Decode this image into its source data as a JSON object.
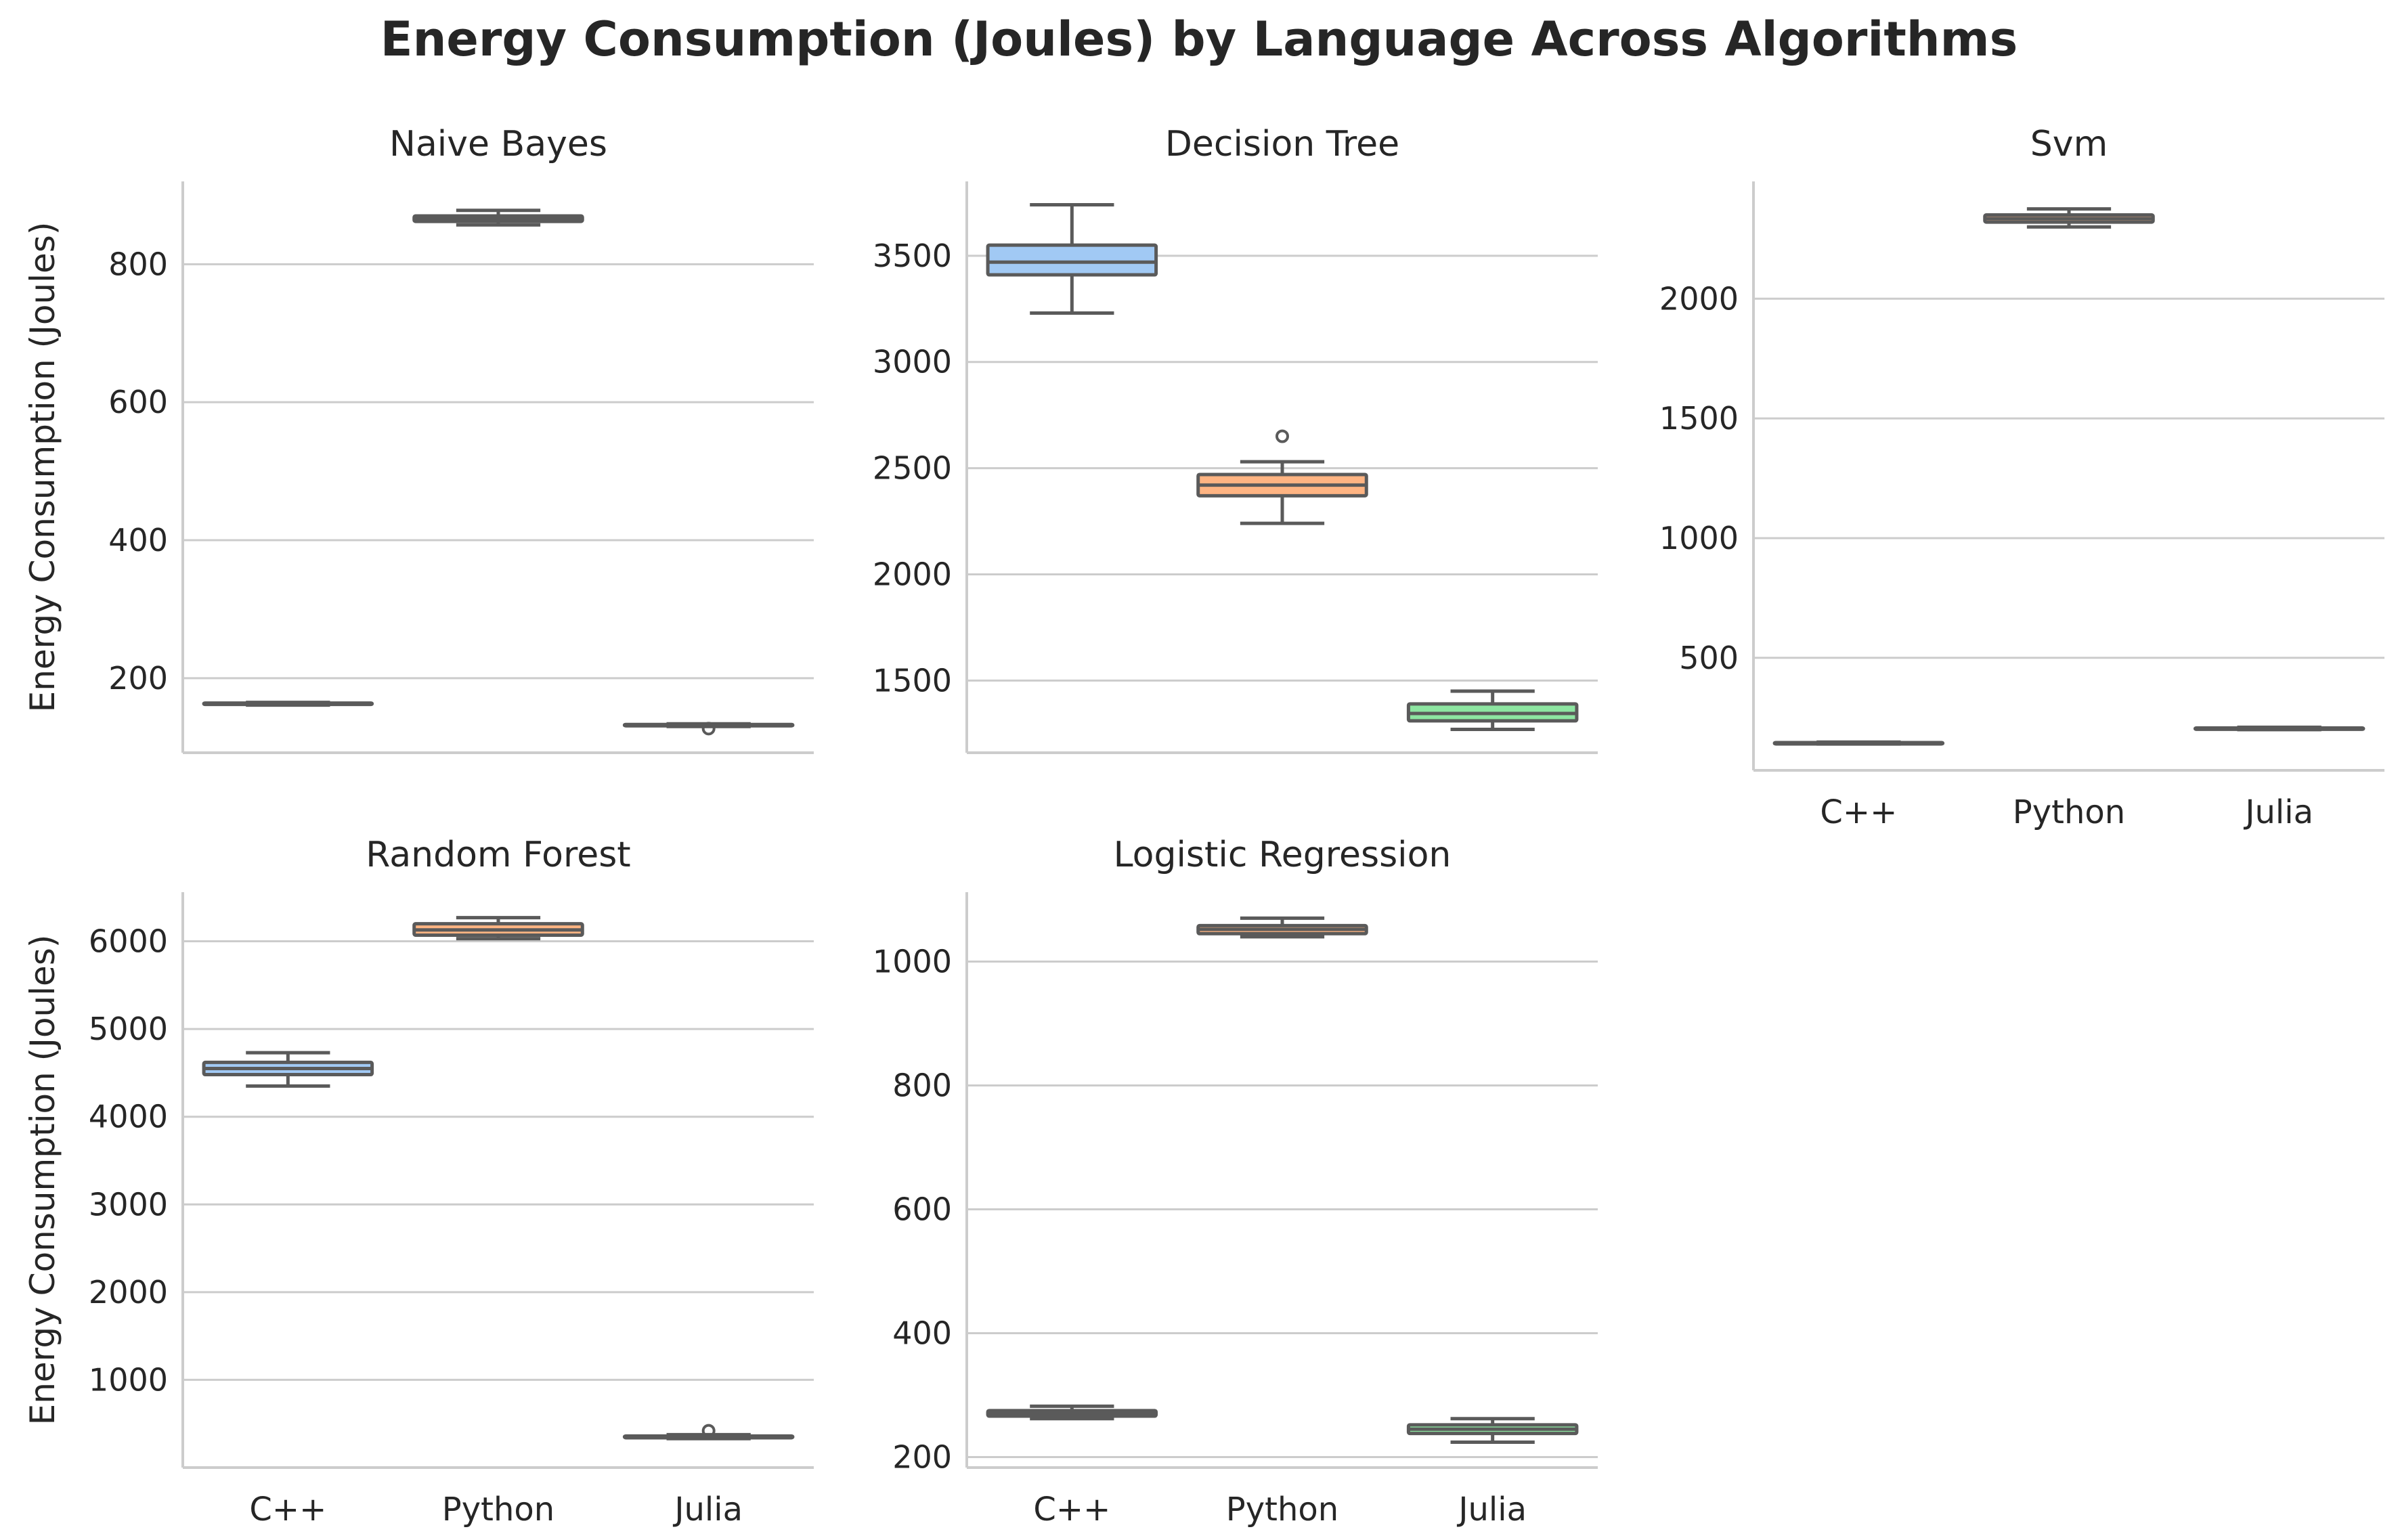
{
  "figure": {
    "title": "Energy Consumption (Joules) by Language Across Algorithms"
  },
  "colors": {
    "C++": "#a1c9f4",
    "Python": "#ffb482",
    "Julia": "#8de5a1",
    "line": "#5a5a5a",
    "grid": "#cccccc",
    "spine": "#cccccc",
    "text": "#262626"
  },
  "chart_data": [
    {
      "type": "box",
      "title": "Naive Bayes",
      "ylabel": "Energy Consumption (Joules)",
      "xlabel": "",
      "categories": [
        "C++",
        "Python",
        "Julia"
      ],
      "show_xticklabels": false,
      "ylim": [
        92,
        920
      ],
      "yticks": [
        200,
        400,
        600,
        800
      ],
      "grid": "horizontal",
      "boxes": [
        {
          "category": "C++",
          "min": 161,
          "q1": 162,
          "median": 163,
          "q3": 164,
          "max": 165,
          "outliers": []
        },
        {
          "category": "Python",
          "min": 857,
          "q1": 862,
          "median": 866,
          "q3": 870,
          "max": 878,
          "outliers": []
        },
        {
          "category": "Julia",
          "min": 130,
          "q1": 131,
          "median": 132,
          "q3": 133,
          "max": 134,
          "outliers": [
            127
          ]
        }
      ]
    },
    {
      "type": "box",
      "title": "Decision Tree",
      "ylabel": "",
      "xlabel": "",
      "categories": [
        "C++",
        "Python",
        "Julia"
      ],
      "show_xticklabels": false,
      "ylim": [
        1160,
        3850
      ],
      "yticks": [
        1500,
        2000,
        2500,
        3000,
        3500
      ],
      "grid": "horizontal",
      "boxes": [
        {
          "category": "C++",
          "min": 3230,
          "q1": 3410,
          "median": 3470,
          "q3": 3550,
          "max": 3740,
          "outliers": []
        },
        {
          "category": "Python",
          "min": 2240,
          "q1": 2370,
          "median": 2420,
          "q3": 2470,
          "max": 2530,
          "outliers": [
            2650
          ]
        },
        {
          "category": "Julia",
          "min": 1270,
          "q1": 1310,
          "median": 1345,
          "q3": 1390,
          "max": 1450,
          "outliers": []
        }
      ]
    },
    {
      "type": "box",
      "title": "Svm",
      "ylabel": "",
      "xlabel": "",
      "categories": [
        "C++",
        "Python",
        "Julia"
      ],
      "show_xticklabels": true,
      "ylim": [
        30,
        2490
      ],
      "yticks": [
        500,
        1000,
        1500,
        2000
      ],
      "grid": "horizontal",
      "boxes": [
        {
          "category": "C++",
          "min": 140,
          "q1": 142,
          "median": 144,
          "q3": 146,
          "max": 148,
          "outliers": []
        },
        {
          "category": "Python",
          "min": 2300,
          "q1": 2320,
          "median": 2335,
          "q3": 2350,
          "max": 2375,
          "outliers": []
        },
        {
          "category": "Julia",
          "min": 200,
          "q1": 203,
          "median": 205,
          "q3": 207,
          "max": 210,
          "outliers": []
        }
      ]
    },
    {
      "type": "box",
      "title": "Random Forest",
      "ylabel": "Energy Consumption (Joules)",
      "xlabel": "",
      "categories": [
        "C++",
        "Python",
        "Julia"
      ],
      "show_xticklabels": true,
      "ylim": [
        0,
        6560
      ],
      "yticks": [
        1000,
        2000,
        3000,
        4000,
        5000,
        6000
      ],
      "grid": "horizontal",
      "boxes": [
        {
          "category": "C++",
          "min": 4350,
          "q1": 4480,
          "median": 4550,
          "q3": 4620,
          "max": 4730,
          "outliers": []
        },
        {
          "category": "Python",
          "min": 6030,
          "q1": 6070,
          "median": 6130,
          "q3": 6200,
          "max": 6270,
          "outliers": []
        },
        {
          "category": "Julia",
          "min": 330,
          "q1": 340,
          "median": 350,
          "q3": 360,
          "max": 375,
          "outliers": [
            420
          ]
        }
      ]
    },
    {
      "type": "box",
      "title": "Logistic Regression",
      "ylabel": "",
      "xlabel": "",
      "categories": [
        "C++",
        "Python",
        "Julia"
      ],
      "show_xticklabels": true,
      "ylim": [
        183,
        1112
      ],
      "yticks": [
        200,
        400,
        600,
        800,
        1000
      ],
      "grid": "horizontal",
      "boxes": [
        {
          "category": "C++",
          "min": 262,
          "q1": 266,
          "median": 270,
          "q3": 275,
          "max": 282,
          "outliers": []
        },
        {
          "category": "Python",
          "min": 1040,
          "q1": 1045,
          "median": 1052,
          "q3": 1058,
          "max": 1070,
          "outliers": []
        },
        {
          "category": "Julia",
          "min": 224,
          "q1": 238,
          "median": 245,
          "q3": 252,
          "max": 262,
          "outliers": []
        }
      ]
    }
  ]
}
